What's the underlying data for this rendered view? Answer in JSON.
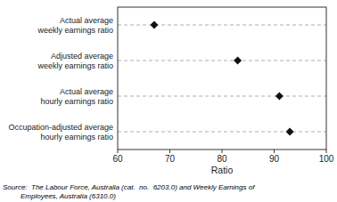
{
  "chart_data": {
    "type": "scatter",
    "categories": [
      "Actual average\nweekly earnings ratio",
      "Adjusted average\nweekly earnings ratio",
      "Actual average\nhourly earnings ratio",
      "Occupation-adjusted average\nhourly earnings ratio"
    ],
    "values": [
      67,
      83,
      91,
      93
    ],
    "color": "#111111",
    "marker": "diamond",
    "xlabel": "Ratio",
    "xlim": [
      60,
      100
    ],
    "xticks": [
      60,
      70,
      80,
      90,
      100
    ],
    "grid": true,
    "annotation": "Source:  The Labour Force, Australia (cat.  no.  6203.0) and Weekly Earnings of\n         Employees, Australia (6310.0)"
  }
}
